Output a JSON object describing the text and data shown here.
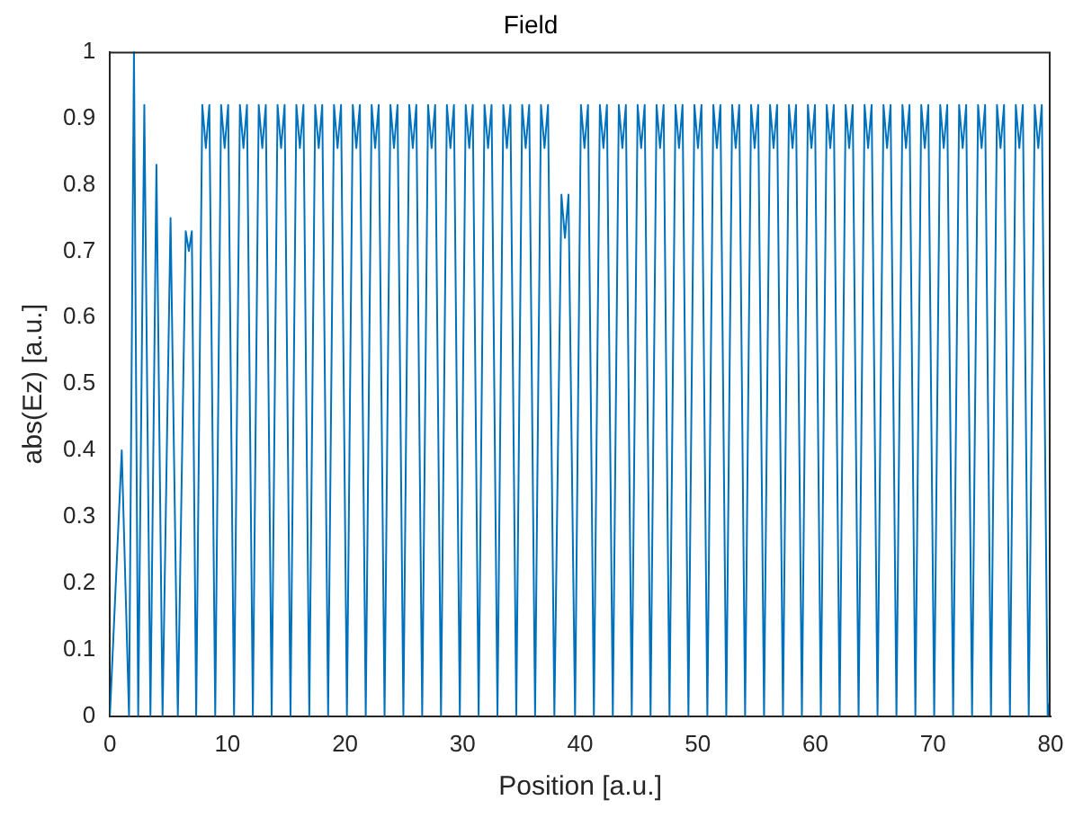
{
  "chart_data": {
    "type": "line",
    "title": "Field",
    "xlabel": "Position [a.u.]",
    "ylabel": "abs(Ez) [a.u.]",
    "xlim": [
      0,
      80
    ],
    "xticks": [
      0,
      10,
      20,
      30,
      40,
      50,
      60,
      70,
      80
    ],
    "ylim": [
      0,
      1
    ],
    "yticks": [
      0,
      0.1,
      0.2,
      0.3,
      0.4,
      0.5,
      0.6,
      0.7,
      0.8,
      0.9,
      1
    ],
    "grid": false,
    "legend": false,
    "marker": "none",
    "line_style": "solid",
    "series": [
      {
        "color": "#0072bd",
        "x": [
          0,
          1.01,
          1.63,
          2.05,
          2.41,
          2.93,
          3.45,
          3.96,
          4.48,
          5.16,
          5.78,
          6.45,
          6.72,
          6.97,
          7.34,
          7.86,
          8.16,
          8.46,
          8.96,
          9.46,
          9.76,
          10.06,
          10.56,
          11.06,
          11.36,
          11.66,
          12.16,
          12.66,
          12.96,
          13.26,
          13.76,
          14.26,
          14.56,
          14.86,
          15.36,
          15.86,
          16.16,
          16.46,
          16.96,
          17.46,
          17.76,
          18.06,
          18.56,
          19.06,
          19.36,
          19.66,
          20.16,
          20.66,
          20.96,
          21.26,
          21.76,
          22.26,
          22.56,
          22.86,
          23.36,
          23.86,
          24.16,
          24.46,
          24.96,
          25.46,
          25.76,
          26.06,
          26.56,
          27.06,
          27.36,
          27.66,
          28.16,
          28.66,
          28.96,
          29.26,
          29.76,
          30.26,
          30.56,
          30.86,
          31.36,
          31.86,
          32.16,
          32.46,
          32.96,
          33.46,
          33.76,
          34.06,
          34.56,
          35.06,
          35.36,
          35.66,
          36.16,
          36.66,
          36.96,
          37.26,
          37.8,
          38.4,
          38.7,
          39.0,
          39.56,
          40.06,
          40.36,
          40.66,
          41.16,
          41.67,
          41.97,
          42.27,
          42.77,
          43.28,
          43.58,
          43.88,
          44.38,
          44.88,
          45.18,
          45.48,
          45.98,
          46.49,
          46.79,
          47.09,
          47.59,
          48.1,
          48.4,
          48.7,
          49.2,
          49.71,
          50.01,
          50.31,
          50.81,
          51.32,
          51.62,
          51.92,
          52.42,
          52.92,
          53.22,
          53.52,
          54.02,
          54.53,
          54.83,
          55.13,
          55.63,
          56.14,
          56.44,
          56.74,
          57.24,
          57.75,
          58.05,
          58.35,
          58.85,
          59.36,
          59.66,
          59.96,
          60.46,
          60.96,
          61.26,
          61.56,
          62.06,
          62.57,
          62.87,
          63.17,
          63.67,
          64.18,
          64.48,
          64.78,
          65.28,
          65.79,
          66.09,
          66.39,
          66.89,
          67.4,
          67.7,
          68.0,
          68.5,
          69.0,
          69.3,
          69.6,
          70.1,
          70.61,
          70.91,
          71.21,
          71.71,
          72.22,
          72.52,
          72.82,
          73.32,
          73.83,
          74.13,
          74.43,
          74.93,
          75.44,
          75.74,
          76.04,
          76.54,
          77.04,
          77.34,
          77.64,
          78.14,
          78.65,
          78.95,
          79.25,
          79.75,
          80
        ],
        "values": [
          0,
          0.4,
          0,
          1.0,
          0,
          0.92,
          0,
          0.83,
          0,
          0.75,
          0,
          0.73,
          0.7,
          0.73,
          0,
          0.92,
          0.855,
          0.92,
          0,
          0.92,
          0.855,
          0.92,
          0,
          0.92,
          0.855,
          0.92,
          0,
          0.92,
          0.855,
          0.92,
          0,
          0.92,
          0.855,
          0.92,
          0,
          0.92,
          0.855,
          0.92,
          0,
          0.92,
          0.855,
          0.92,
          0,
          0.92,
          0.855,
          0.92,
          0,
          0.92,
          0.855,
          0.92,
          0,
          0.92,
          0.855,
          0.92,
          0,
          0.92,
          0.855,
          0.92,
          0,
          0.92,
          0.855,
          0.92,
          0,
          0.92,
          0.855,
          0.92,
          0,
          0.92,
          0.855,
          0.92,
          0,
          0.92,
          0.855,
          0.92,
          0,
          0.92,
          0.855,
          0.92,
          0,
          0.92,
          0.855,
          0.92,
          0,
          0.92,
          0.855,
          0.92,
          0,
          0.92,
          0.855,
          0.92,
          0,
          0.785,
          0.72,
          0.785,
          0,
          0.92,
          0.855,
          0.92,
          0,
          0.92,
          0.855,
          0.92,
          0,
          0.92,
          0.855,
          0.92,
          0,
          0.92,
          0.855,
          0.92,
          0,
          0.92,
          0.855,
          0.92,
          0,
          0.92,
          0.855,
          0.92,
          0,
          0.92,
          0.855,
          0.92,
          0,
          0.92,
          0.855,
          0.92,
          0,
          0.92,
          0.855,
          0.92,
          0,
          0.92,
          0.855,
          0.92,
          0,
          0.92,
          0.855,
          0.92,
          0,
          0.92,
          0.855,
          0.92,
          0,
          0.92,
          0.855,
          0.92,
          0,
          0.92,
          0.855,
          0.92,
          0,
          0.92,
          0.855,
          0.92,
          0,
          0.92,
          0.855,
          0.92,
          0,
          0.92,
          0.855,
          0.92,
          0,
          0.92,
          0.855,
          0.92,
          0,
          0.92,
          0.855,
          0.92,
          0,
          0.92,
          0.855,
          0.92,
          0,
          0.92,
          0.855,
          0.92,
          0,
          0.92,
          0.855,
          0.92,
          0,
          0.92,
          0.855,
          0.92,
          0,
          0.92,
          0.855,
          0.92,
          0,
          0.92,
          0.855,
          0.92,
          0,
          0.03
        ]
      }
    ]
  }
}
